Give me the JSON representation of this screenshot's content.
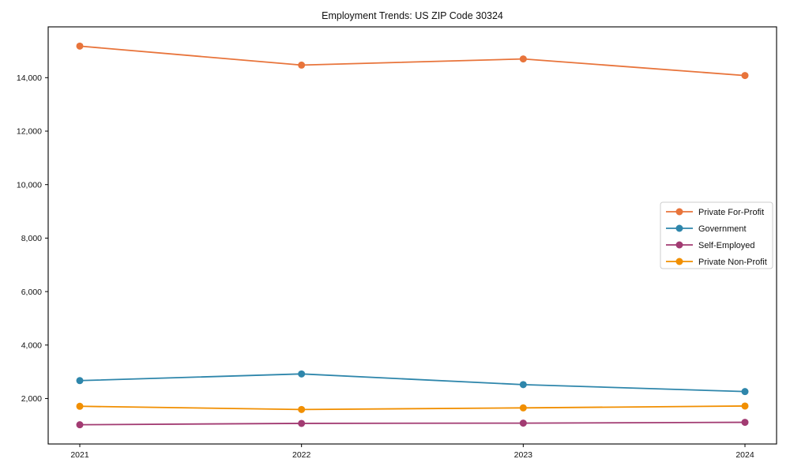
{
  "chart_data": {
    "type": "line",
    "title": "Employment Trends: US ZIP Code 30324",
    "xlabel": "",
    "ylabel": "",
    "x": [
      2021,
      2022,
      2023,
      2024
    ],
    "x_tick_labels": [
      "2021",
      "2022",
      "2023",
      "2024"
    ],
    "series": [
      {
        "name": "Private For-Profit",
        "color": "#e8743b",
        "values": [
          15180,
          14470,
          14700,
          14080
        ]
      },
      {
        "name": "Government",
        "color": "#2e86ab",
        "values": [
          2670,
          2920,
          2520,
          2260
        ]
      },
      {
        "name": "Self-Employed",
        "color": "#a23b72",
        "values": [
          1020,
          1070,
          1080,
          1110
        ]
      },
      {
        "name": "Private Non-Profit",
        "color": "#f18f01",
        "values": [
          1710,
          1590,
          1650,
          1720
        ]
      }
    ],
    "ylim": [
      300,
      15900
    ],
    "yticks": [
      2000,
      4000,
      6000,
      8000,
      10000,
      12000,
      14000
    ],
    "ytick_labels": [
      "2,000",
      "4,000",
      "6,000",
      "8,000",
      "10,000",
      "12,000",
      "14,000"
    ],
    "grid": false,
    "legend_position": "center right",
    "axis_color": "#000000",
    "background_color": "#ffffff",
    "legend_border_color": "#cccccc"
  }
}
